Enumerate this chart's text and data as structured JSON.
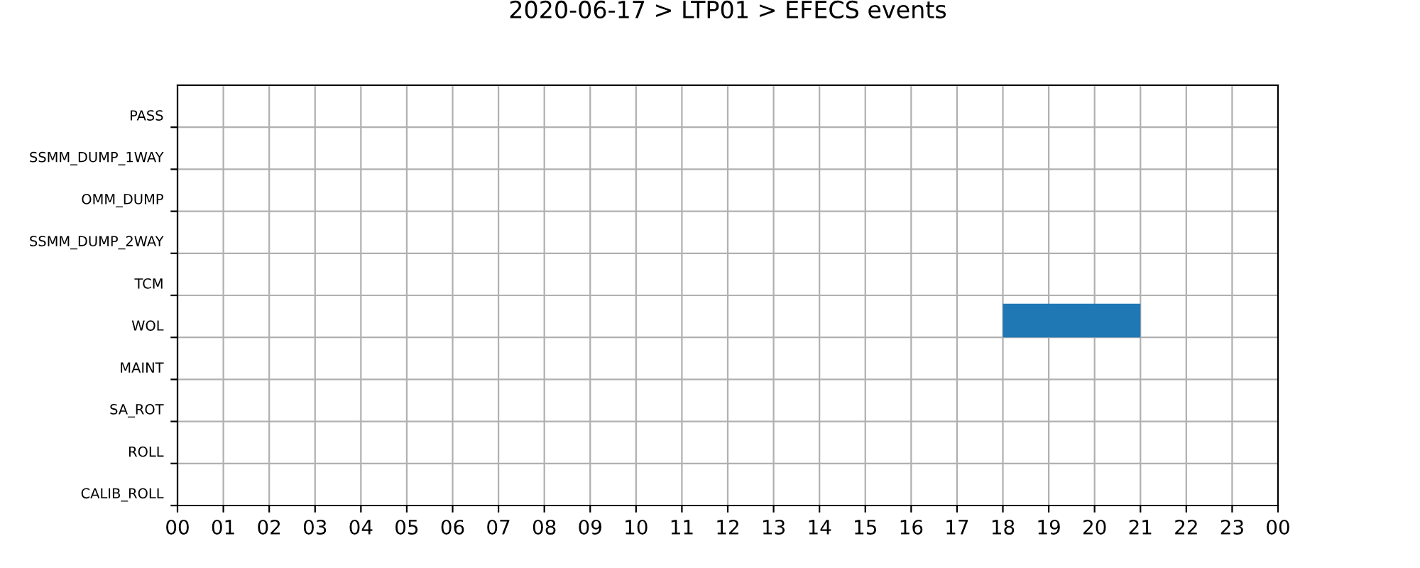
{
  "chart_data": {
    "type": "bar",
    "orientation": "horizontal",
    "title": "2020-06-17 > LTP01 > EFECS events",
    "categories": [
      "PASS",
      "SSMM_DUMP_1WAY",
      "OMM_DUMP",
      "SSMM_DUMP_2WAY",
      "TCM",
      "WOL",
      "MAINT",
      "SA_ROT",
      "ROLL",
      "CALIB_ROLL"
    ],
    "base": [
      null,
      null,
      null,
      null,
      null,
      18,
      null,
      null,
      null,
      null
    ],
    "values": [
      null,
      null,
      null,
      null,
      null,
      3,
      null,
      null,
      null,
      null
    ],
    "color": "#1f77b4",
    "xlim": [
      0,
      24
    ],
    "xticks": [
      {
        "value": 0,
        "label": "00"
      },
      {
        "value": 1,
        "label": "01"
      },
      {
        "value": 2,
        "label": "02"
      },
      {
        "value": 3,
        "label": "03"
      },
      {
        "value": 4,
        "label": "04"
      },
      {
        "value": 5,
        "label": "05"
      },
      {
        "value": 6,
        "label": "06"
      },
      {
        "value": 7,
        "label": "07"
      },
      {
        "value": 8,
        "label": "08"
      },
      {
        "value": 9,
        "label": "09"
      },
      {
        "value": 10,
        "label": "10"
      },
      {
        "value": 11,
        "label": "11"
      },
      {
        "value": 12,
        "label": "12"
      },
      {
        "value": 13,
        "label": "13"
      },
      {
        "value": 14,
        "label": "14"
      },
      {
        "value": 15,
        "label": "15"
      },
      {
        "value": 16,
        "label": "16"
      },
      {
        "value": 17,
        "label": "17"
      },
      {
        "value": 18,
        "label": "18"
      },
      {
        "value": 19,
        "label": "19"
      },
      {
        "value": 20,
        "label": "20"
      },
      {
        "value": 21,
        "label": "21"
      },
      {
        "value": 22,
        "label": "22"
      },
      {
        "value": 23,
        "label": "23"
      },
      {
        "value": 24,
        "label": "00"
      }
    ],
    "grid": true
  }
}
